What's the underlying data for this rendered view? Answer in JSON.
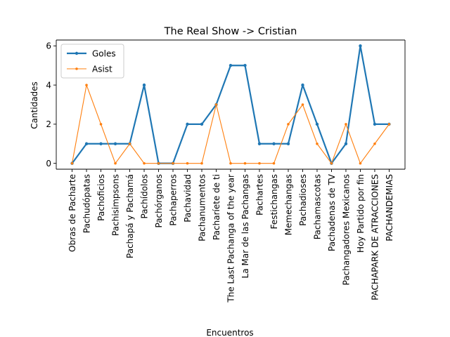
{
  "chart_data": {
    "type": "line",
    "title": "The Real Show -> Cristian",
    "xlabel": "Encuentros",
    "ylabel": "Cantidades",
    "categories": [
      "Obras de Pacharte",
      "Pachudópatas",
      "Pachoficios",
      "Pachisimpsons",
      "Pachapá y Pachamá",
      "Pachídolos",
      "Pachórganos",
      "Pachaperros",
      "Pachavidad",
      "Pachanumentos",
      "Pacharíete de ti",
      "The Last Pachanga of the year",
      "La Mar de las Pachangas",
      "Pachartes",
      "Festichangas",
      "Memechangas",
      "Pachadioses",
      "Pachamascotas",
      "Pachadenas de TV",
      "Pachangadores Mexicanos",
      "Hoy Partido por fin",
      "PACHAPARK DE ATRACCIONES",
      "PACHANDEMIAS"
    ],
    "series": [
      {
        "name": "Goles",
        "color": "#1f77b4",
        "values": [
          0,
          1,
          1,
          1,
          1,
          4,
          0,
          0,
          2,
          2,
          3,
          5,
          5,
          1,
          1,
          1,
          4,
          2,
          0,
          1,
          6,
          2,
          2
        ]
      },
      {
        "name": "Asist",
        "color": "#ff7f0e",
        "values": [
          0,
          4,
          2,
          0,
          1,
          0,
          0,
          0,
          0,
          0,
          3,
          0,
          0,
          0,
          0,
          2,
          3,
          1,
          0,
          2,
          0,
          1,
          2
        ]
      }
    ],
    "y_ticks": [
      0,
      2,
      4,
      6
    ],
    "ylim": [
      -0.3,
      6.3
    ],
    "grid": false,
    "legend_position": "upper-left"
  }
}
